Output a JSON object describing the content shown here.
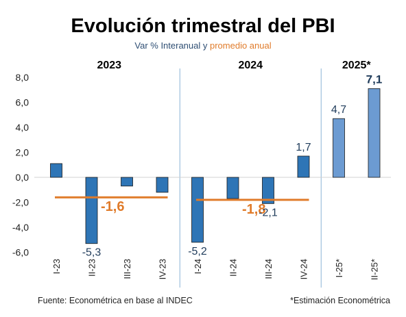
{
  "chart_data": {
    "type": "bar",
    "title": "Evolución trimestral del PBI",
    "subtitle_part1": "Var % Interanual y ",
    "subtitle_part2": "promedio anual",
    "categories": [
      "I-23",
      "II-23",
      "III-23",
      "IV-23",
      "I-24",
      "II-24",
      "III-24",
      "IV-24",
      "I-25*",
      "II-25*"
    ],
    "values": [
      1.1,
      -5.3,
      -0.7,
      -1.2,
      -5.2,
      -1.7,
      -2.1,
      1.7,
      4.7,
      7.1
    ],
    "labels": [
      "",
      "-5,3",
      "",
      "",
      "-5,2",
      "",
      "-2,1",
      "1,7",
      "4,7",
      "7,1"
    ],
    "bold_labels": [
      false,
      false,
      false,
      false,
      false,
      false,
      false,
      false,
      false,
      true
    ],
    "estimate": [
      false,
      false,
      false,
      false,
      false,
      false,
      false,
      false,
      true,
      true
    ],
    "year_groups": [
      {
        "label": "2023",
        "start": 0,
        "end": 3
      },
      {
        "label": "2024",
        "start": 4,
        "end": 7
      },
      {
        "label": "2025*",
        "start": 8,
        "end": 9
      }
    ],
    "averages": [
      {
        "year": "2023",
        "value": -1.6,
        "label": "-1,6",
        "start": 0,
        "end": 3
      },
      {
        "year": "2024",
        "value": -1.8,
        "label": "-1,8",
        "start": 4,
        "end": 7
      }
    ],
    "y_ticks": [
      8,
      6,
      4,
      2,
      0,
      -2,
      -4,
      -6
    ],
    "y_tick_labels": [
      "8,0",
      "6,0",
      "4,0",
      "2,0",
      "0,0",
      "-2,0",
      "-4,0",
      "-6,0"
    ],
    "ylim": [
      -6,
      8
    ],
    "grid": false,
    "colors": {
      "bar": "#2e75b6",
      "bar_estimate": "#6c9bd2",
      "bar_stroke": "#1a1a1a",
      "average": "#e07b2a",
      "separator": "#8ab3d5",
      "subtitle": "#2e4e73"
    },
    "source": "Fuente: Econométrica en base al INDEC",
    "note": "*Estimación Econométrica"
  }
}
